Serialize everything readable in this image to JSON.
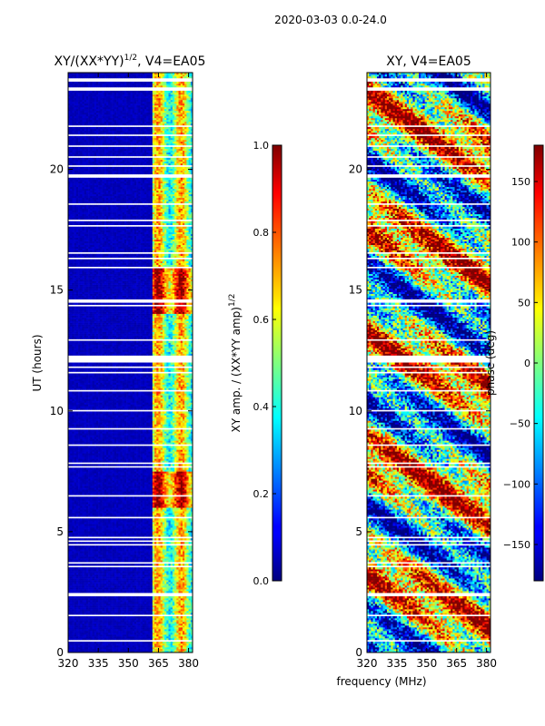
{
  "chart_data": {
    "type": "heatmap",
    "suptitle": "2020-03-03 0.0-24.0",
    "xlabel": "frequency (MHz)",
    "panels": [
      {
        "title": "XY/(XX*YY)^1/2, V4=EA05",
        "title_main": "XY/(XX*YY)",
        "title_sup": "1/2",
        "title_tail": ", V4=EA05",
        "ylabel": "UT (hours)",
        "xlim": [
          320,
          382
        ],
        "ylim": [
          0,
          24
        ],
        "xticks": [
          320,
          335,
          350,
          365,
          380
        ],
        "yticks": [
          0,
          5,
          10,
          15,
          20
        ],
        "colormap": "jet",
        "colorbar": {
          "label": "XY amp. / (XX*YY amp)^1/2",
          "label_main": "XY amp. / (XX*YY amp)",
          "label_sup": "1/2",
          "range": [
            0.0,
            1.0
          ],
          "ticks": [
            "0.0",
            "0.2",
            "0.4",
            "0.6",
            "0.8",
            "1.0"
          ],
          "tick_values": [
            0.0,
            0.2,
            0.4,
            0.6,
            0.8,
            1.0
          ]
        }
      },
      {
        "title": "XY, V4=EA05",
        "xlim": [
          320,
          382
        ],
        "ylim": [
          0,
          24
        ],
        "xticks": [
          320,
          335,
          350,
          365,
          380
        ],
        "yticks": [
          0,
          5,
          10,
          15,
          20
        ],
        "colormap": "jet",
        "colorbar": {
          "label": "phase (deg)",
          "range": [
            -180,
            180
          ],
          "ticks": [
            "−150",
            "−100",
            "−50",
            "0",
            "50",
            "100",
            "150"
          ],
          "tick_values": [
            -150,
            -100,
            -50,
            0,
            50,
            100,
            150
          ]
        }
      }
    ]
  }
}
